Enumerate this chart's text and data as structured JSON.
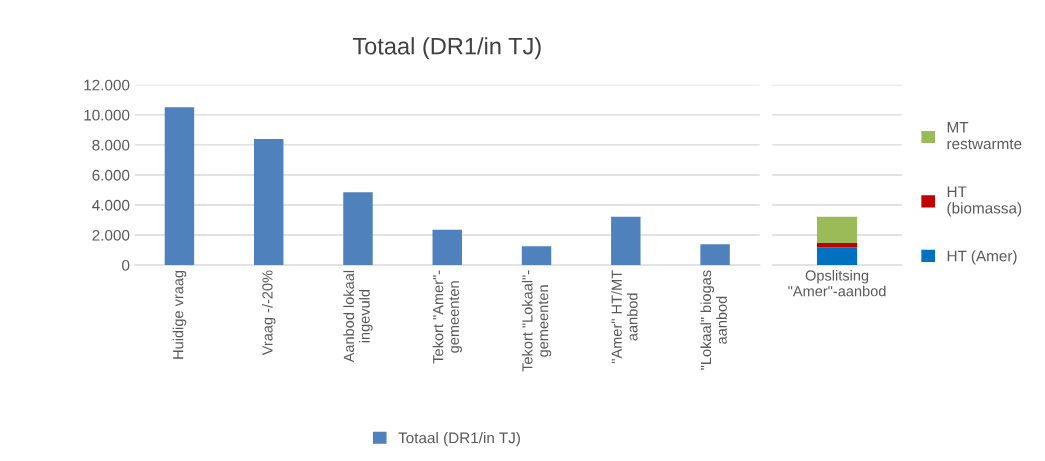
{
  "chart_data": [
    {
      "type": "bar",
      "title": "Totaal (DR1/in TJ)",
      "categories": [
        "Huidige vraag",
        "Vraag -/-20%",
        "Aanbod lokaal\ningevuld",
        "Tekort \"Amer\"-\ngemeenten",
        "Tekort \"Lokaal\"-\ngemeenten",
        "\"Amer\" HT/MT\naanbod",
        "\"Lokaal\" biogas\naanbod"
      ],
      "series": [
        {
          "name": "Totaal (DR1/in TJ)",
          "color": "#4f81bd",
          "values": [
            10500,
            8400,
            4850,
            2350,
            1250,
            3220,
            1380
          ]
        }
      ],
      "ylim": [
        0,
        12000
      ],
      "yticks": [
        {
          "value": 0,
          "label": "0"
        },
        {
          "value": 2000,
          "label": "2.000"
        },
        {
          "value": 4000,
          "label": "4.000"
        },
        {
          "value": 6000,
          "label": "6.000"
        },
        {
          "value": 8000,
          "label": "8.000"
        },
        {
          "value": 10000,
          "label": "10.000"
        },
        {
          "value": 12000,
          "label": "12.000"
        }
      ],
      "grid": "y",
      "legend": "bottom"
    },
    {
      "type": "bar",
      "stacked": true,
      "categories": [
        "Opslitsing\n\"Amer\"-aanbod"
      ],
      "series": [
        {
          "name": "HT (Amer)",
          "color": "#0070c0",
          "values": [
            1180
          ]
        },
        {
          "name": "HT\n(biomassa)",
          "color": "#c00000",
          "values": [
            290
          ]
        },
        {
          "name": "MT\nrestwarmte",
          "color": "#9bbb59",
          "values": [
            1750
          ]
        }
      ],
      "ylim": [
        0,
        12000
      ],
      "yticks": [
        0,
        2000,
        4000,
        6000,
        8000,
        10000,
        12000
      ],
      "tick_labels": "x",
      "grid": "y",
      "legend": "right"
    }
  ]
}
